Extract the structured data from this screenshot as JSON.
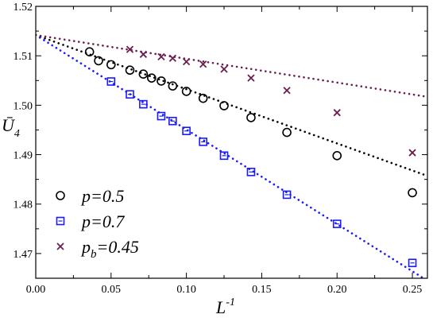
{
  "chart_data": {
    "type": "scatter",
    "title": "",
    "xlabel": "L",
    "xlabel_sup": "-1",
    "ylabel": "Ū",
    "ylabel_sub": "4",
    "xlim": [
      0,
      0.26
    ],
    "ylim": [
      1.465,
      1.52
    ],
    "xticks": [
      0,
      0.05,
      0.1,
      0.15,
      0.2,
      0.25
    ],
    "xtick_labels": [
      "0.00",
      "0.05",
      "0.10",
      "0.15",
      "0.20",
      "0.25"
    ],
    "yticks": [
      1.47,
      1.48,
      1.49,
      1.5,
      1.51,
      1.52
    ],
    "ytick_labels": [
      "1.47",
      "1.48",
      "1.49",
      "1.50",
      "1.51",
      "1.52"
    ],
    "grid": false,
    "legend_position": "bottom-left",
    "series": [
      {
        "name": "p=0.5",
        "marker": "circle",
        "color": "#000000",
        "x": [
          0.0357,
          0.0417,
          0.05,
          0.0625,
          0.0714,
          0.0769,
          0.0833,
          0.0909,
          0.1,
          0.1111,
          0.125,
          0.1429,
          0.1667,
          0.2,
          0.25
        ],
        "y": [
          1.5108,
          1.509,
          1.5082,
          1.5071,
          1.5063,
          1.5055,
          1.5049,
          1.5039,
          1.5028,
          1.5014,
          1.4999,
          1.4975,
          1.4945,
          1.4898,
          1.4823
        ],
        "fit": {
          "x": [
            0,
            0.26
          ],
          "y": [
            1.5142,
            1.4857
          ]
        }
      },
      {
        "name": "p=0.7",
        "marker": "square",
        "color": "#1a1aff",
        "x": [
          0.05,
          0.0625,
          0.0714,
          0.0833,
          0.0909,
          0.1,
          0.1111,
          0.125,
          0.1429,
          0.1667,
          0.2,
          0.25
        ],
        "y": [
          1.5048,
          1.5022,
          1.5002,
          1.4978,
          1.4968,
          1.4948,
          1.4926,
          1.4898,
          1.4865,
          1.4819,
          1.476,
          1.4681
        ],
        "fit": {
          "x": [
            0,
            0.26
          ],
          "y": [
            1.5142,
            1.4645
          ]
        }
      },
      {
        "name": "p_b=0.45",
        "name_main": "p",
        "name_sub": "b",
        "name_rest": "=0.45",
        "marker": "x",
        "color": "#6b1f4f",
        "x": [
          0.0625,
          0.0714,
          0.0833,
          0.0909,
          0.1,
          0.1111,
          0.125,
          0.1429,
          0.1667,
          0.2,
          0.25
        ],
        "y": [
          1.5113,
          1.5103,
          1.5098,
          1.5095,
          1.5088,
          1.5083,
          1.5073,
          1.5055,
          1.503,
          1.4985,
          1.4904
        ],
        "fit": {
          "x": [
            0,
            0.26
          ],
          "y": [
            1.5142,
            1.5017
          ]
        }
      }
    ]
  }
}
